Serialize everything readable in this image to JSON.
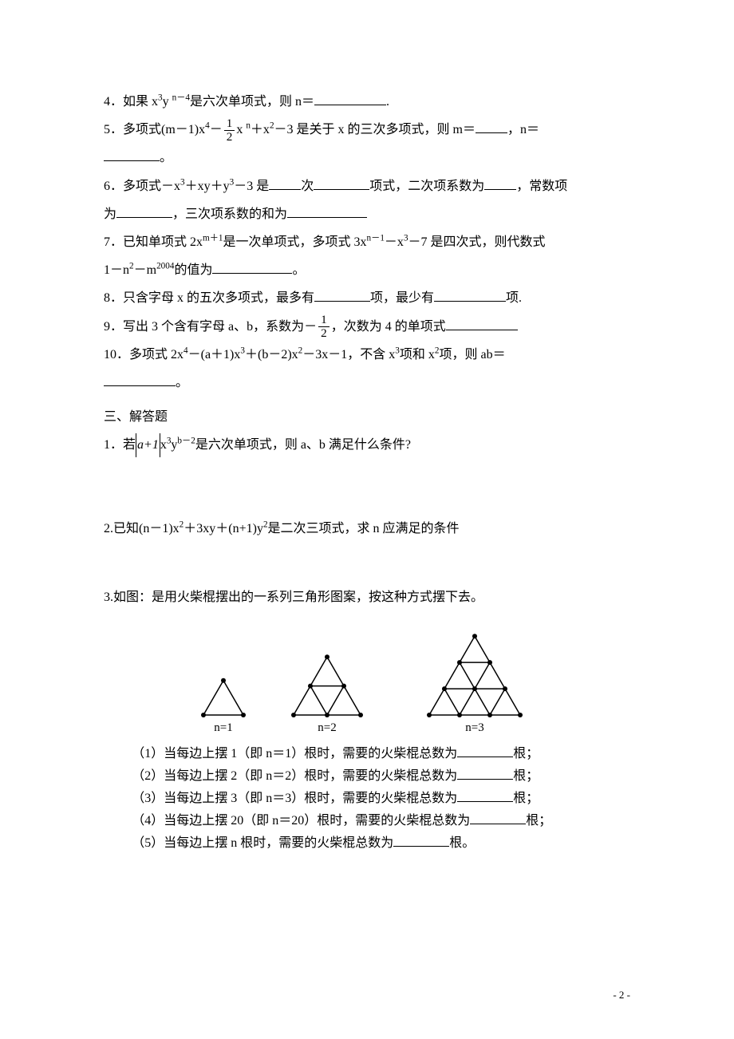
{
  "page_number_label": "- 2 -",
  "questions": {
    "q4": {
      "num": "4．",
      "pre": "如果 x",
      "e1a": "3",
      "mid1": "y ",
      "e1b": "n－4",
      "post": "是六次单项式，则 n＝",
      "period": "."
    },
    "q5": {
      "num": "5．",
      "pre": "多项式(m－1)x",
      "e1": "4",
      "mid1": "－",
      "frac_num": "1",
      "frac_den": "2",
      "mid2": "x ",
      "e2": "n",
      "mid3": "＋x",
      "e3": "2",
      "post": "－3 是关于 x 的三次多项式，则 m＝",
      "post2": "，n＝",
      "period": "。"
    },
    "q6": {
      "num": "6．",
      "pre": "多项式－x",
      "e1": "3",
      "mid1": "＋xy＋y",
      "e2": "3",
      "mid2": "－3 是",
      "t1": "次",
      "t2": "项式，二次项系数为",
      "t3": "，常数项",
      "line2a": "为",
      "line2b": "，三次项系数的和为"
    },
    "q7": {
      "num": "7．",
      "pre": "已知单项式 2x",
      "e1": "m＋1",
      "mid1": "是一次单项式，多项式 3x",
      "e2": "n－1",
      "mid2": "－x",
      "e3": "3",
      "post": "－7 是四次式，则代数式",
      "line2a": "1－n",
      "e4": "2",
      "line2b": "－m",
      "e5": "2004",
      "line2c": "的值为",
      "period": "。"
    },
    "q8": {
      "num": "8．",
      "pre": "只含字母 x 的五次多项式，最多有",
      "mid": "项，最少有",
      "post": "项."
    },
    "q9": {
      "num": "9．",
      "pre": "写出 3 个含有字母 a、b，系数为－",
      "frac_num": "1",
      "frac_den": "2",
      "post": "，次数为 4 的单项式"
    },
    "q10": {
      "num": "10．",
      "pre": "多项式 2x",
      "e1": "4",
      "mid1": "－(a＋1)x",
      "e2": "3",
      "mid2": "＋(b－2)x",
      "e3": "2",
      "mid3": "－3x－1，不含 x",
      "e4": "3",
      "mid4": "项和 x",
      "e5": "2",
      "post": "项，则 ab＝",
      "period": "。"
    }
  },
  "section3_heading": "三、解答题",
  "solve": {
    "s1": {
      "num": "1．",
      "pre": "若",
      "abs": "a+1",
      "mid1": "x",
      "e1": "3",
      "mid2": "y",
      "e2": "b－2",
      "post": "是六次单项式，则 a、b 满足什么条件?"
    },
    "s2": {
      "num": "2.",
      "pre": "已知(n－1)x",
      "e1": "2",
      "mid1": "＋3xy＋(n+1)y",
      "e2": "2",
      "post": "是二次三项式，求 n 应满足的条件"
    },
    "s3": {
      "num": "3.",
      "text": "如图：是用火柴棍摆出的一系列三角形图案，按这种方式摆下去。"
    }
  },
  "figure_labels": {
    "n1": "n=1",
    "n2": "n=2",
    "n3": "n=3"
  },
  "subparts": {
    "p1": "（1）当每边上摆 1（即 n＝1）根时，需要的火柴棍总数为",
    "p1end": "根；",
    "p2": "（2）当每边上摆 2（即 n＝2）根时，需要的火柴棍总数为",
    "p2end": "根；",
    "p3": "（3）当每边上摆 3（即 n＝3）根时，需要的火柴棍总数为",
    "p3end": "根；",
    "p4": "（4）当每边上摆 20（即 n＝20）根时，需要的火柴棍总数为",
    "p4end": "根；",
    "p5": "（5）当每边上摆 n 根时，需要的火柴棍总数为",
    "p5end": "根。"
  },
  "svg": {
    "dot_r": 3,
    "stroke": "#000000",
    "stroke_w": 1.5,
    "unit": 50
  }
}
